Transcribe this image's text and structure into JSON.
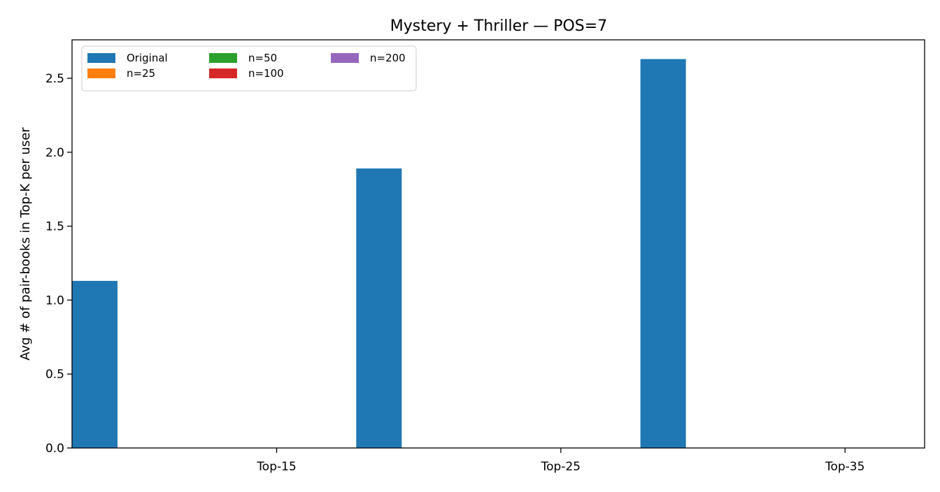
{
  "chart_data": {
    "type": "bar",
    "title": "Mystery + Thriller — POS=7",
    "xlabel": "",
    "ylabel": "Avg # of pair-books in Top-K per user",
    "categories": [
      "Top-15",
      "Top-25",
      "Top-35"
    ],
    "ylim": [
      0,
      2.76
    ],
    "yticks": [
      0.0,
      0.5,
      1.0,
      1.5,
      2.0,
      2.5
    ],
    "ytick_labels": [
      "0.0",
      "0.5",
      "1.0",
      "1.5",
      "2.0",
      "2.5"
    ],
    "grid": false,
    "legend_placement": "top-left",
    "legend_columns": 3,
    "series": [
      {
        "name": "Original",
        "color": "#1f77b4",
        "values": [
          1.13,
          1.89,
          2.63
        ]
      },
      {
        "name": "n=25",
        "color": "#ff7f0e",
        "values": [
          0,
          0,
          0
        ]
      },
      {
        "name": "n=50",
        "color": "#2ca02c",
        "values": [
          0,
          0,
          0
        ]
      },
      {
        "name": "n=100",
        "color": "#d62728",
        "values": [
          0,
          0,
          0
        ]
      },
      {
        "name": "n=200",
        "color": "#9467bd",
        "values": [
          0,
          0,
          0
        ]
      }
    ]
  }
}
